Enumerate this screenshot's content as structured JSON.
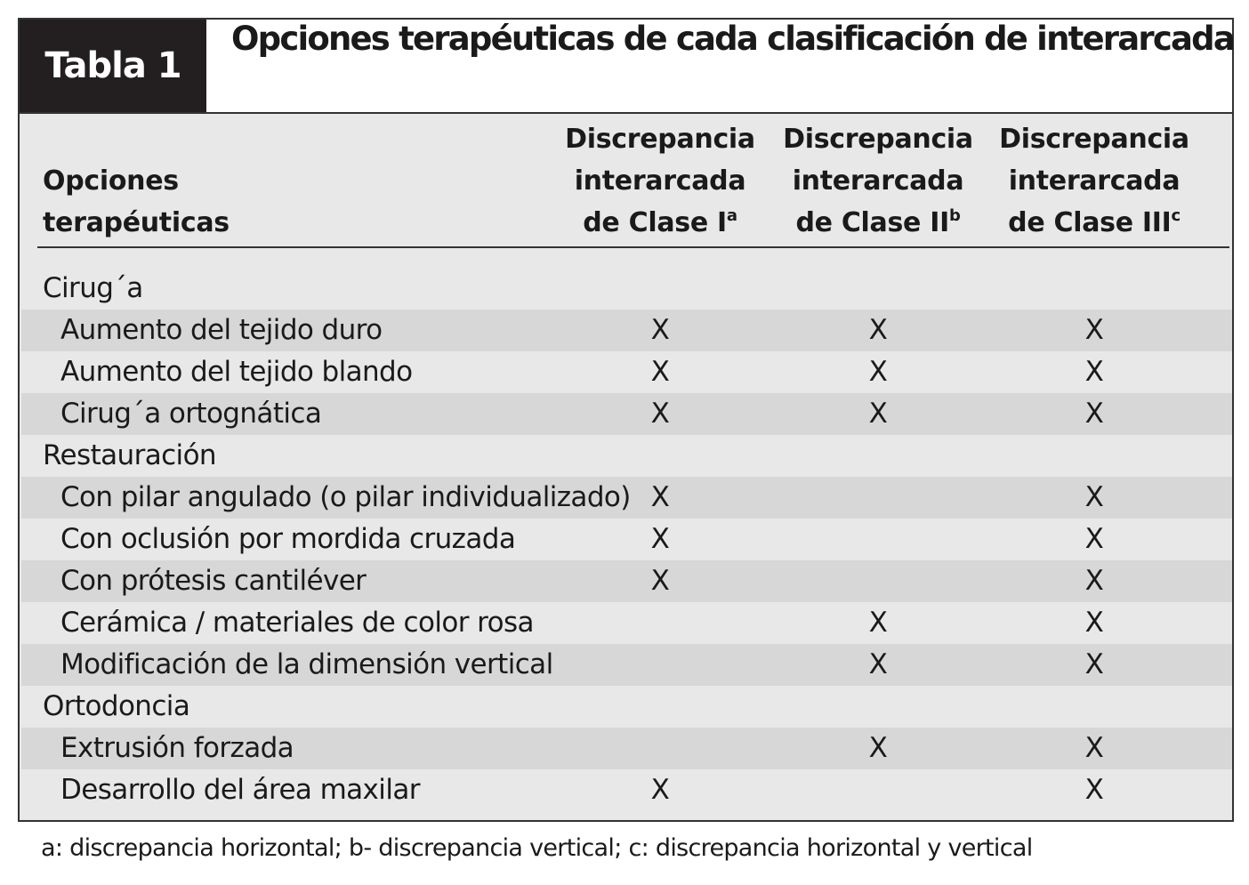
{
  "header": {
    "label": "Tabla 1",
    "title": "Opciones terapéuticas de cada clasificación de interarcada"
  },
  "table": {
    "columns": [
      {
        "lines": [
          "Opciones",
          "terapéuticas"
        ]
      },
      {
        "lines": [
          "Discrepancia",
          "interarcada",
          "de Clase I"
        ],
        "sup": "a"
      },
      {
        "lines": [
          "Discrepancia",
          "interarcada",
          "de Clase II"
        ],
        "sup": "b"
      },
      {
        "lines": [
          "Discrepancia",
          "interarcada",
          "de Clase III"
        ],
        "sup": "c"
      }
    ],
    "sections": [
      {
        "title": "Cirug´a",
        "rows": [
          {
            "label": "Aumento del tejido duro",
            "marks": [
              "X",
              "X",
              "X"
            ]
          },
          {
            "label": "Aumento del tejido blando",
            "marks": [
              "X",
              "X",
              "X"
            ]
          },
          {
            "label": "Cirug´a ortognática",
            "marks": [
              "X",
              "X",
              "X"
            ]
          }
        ]
      },
      {
        "title": "Restauración",
        "rows": [
          {
            "label": "Con pilar angulado (o pilar individualizado)",
            "marks": [
              "X",
              null,
              "X"
            ]
          },
          {
            "label": "Con oclusión por mordida cruzada",
            "marks": [
              "X",
              null,
              "X"
            ]
          },
          {
            "label": "Con prótesis cantiléver",
            "marks": [
              "X",
              null,
              "X"
            ]
          },
          {
            "label": "Cerámica / materiales de color rosa",
            "marks": [
              null,
              "X",
              "X"
            ]
          },
          {
            "label": "Modificación de la dimensión vertical",
            "marks": [
              null,
              "X",
              "X"
            ]
          }
        ]
      },
      {
        "title": "Ortodoncia",
        "rows": [
          {
            "label": "Extrusión forzada",
            "marks": [
              null,
              "X",
              "X"
            ]
          },
          {
            "label": "Desarrollo del área maxilar",
            "marks": [
              "X",
              null,
              "X"
            ]
          }
        ]
      }
    ]
  },
  "footnote": "a: discrepancia horizontal; b- discrepancia vertical; c: discrepancia horizontal y vertical"
}
